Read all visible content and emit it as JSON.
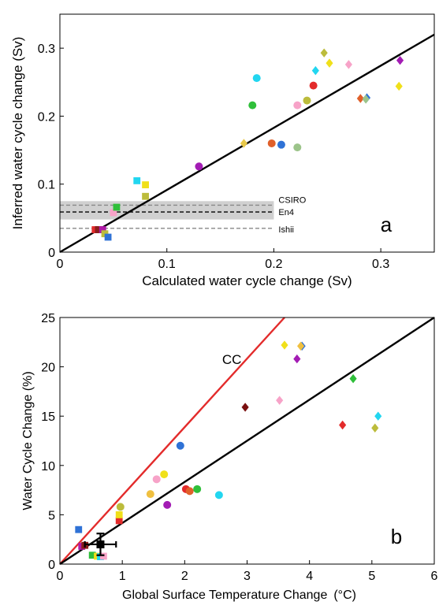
{
  "chart_data": [
    {
      "panel": "a",
      "type": "scatter",
      "xlabel": "Calculated water cycle change (Sv)",
      "ylabel": "Inferred water cycle change (Sv)",
      "xlim": [
        0,
        0.35
      ],
      "ylim": [
        0,
        0.35
      ],
      "xticks": [
        "0",
        "0.1",
        "0.2",
        "0.3"
      ],
      "yticks": [
        "0",
        "0.1",
        "0.2",
        "0.3"
      ],
      "grid": false,
      "panel_label": "a",
      "fit_line": {
        "x": [
          0,
          0.35
        ],
        "y": [
          0,
          0.32
        ],
        "color": "#000000"
      },
      "band": {
        "y_range": [
          0.048,
          0.075
        ],
        "color": "#d0d0d0"
      },
      "reference_lines": [
        {
          "label": "CSIRO",
          "y": 0.069,
          "style": "dashed",
          "color": "#888888"
        },
        {
          "label": "En4",
          "y": 0.059,
          "style": "dashed",
          "color": "#000000"
        },
        {
          "label": "Ishii",
          "y": 0.035,
          "style": "dashed",
          "color": "#888888"
        }
      ],
      "points": [
        {
          "x": 0.033,
          "y": 0.033,
          "marker": "square",
          "color": "#e32b2b"
        },
        {
          "x": 0.036,
          "y": 0.033,
          "marker": "square",
          "color": "#8a1c1c"
        },
        {
          "x": 0.04,
          "y": 0.033,
          "marker": "square",
          "color": "#b01aa8"
        },
        {
          "x": 0.042,
          "y": 0.027,
          "marker": "square",
          "color": "#bcbc3c"
        },
        {
          "x": 0.045,
          "y": 0.022,
          "marker": "square",
          "color": "#2f72d6"
        },
        {
          "x": 0.05,
          "y": 0.058,
          "marker": "square",
          "color": "#f7a3c8"
        },
        {
          "x": 0.053,
          "y": 0.066,
          "marker": "square",
          "color": "#2fbf3a"
        },
        {
          "x": 0.072,
          "y": 0.105,
          "marker": "square",
          "color": "#22d6f0"
        },
        {
          "x": 0.08,
          "y": 0.099,
          "marker": "square",
          "color": "#f0e01a"
        },
        {
          "x": 0.08,
          "y": 0.082,
          "marker": "square",
          "color": "#bcbc3c"
        },
        {
          "x": 0.13,
          "y": 0.126,
          "marker": "circle",
          "color": "#a31cb4"
        },
        {
          "x": 0.172,
          "y": 0.16,
          "marker": "diamond",
          "color": "#e8c84a"
        },
        {
          "x": 0.18,
          "y": 0.216,
          "marker": "circle",
          "color": "#2fbf3a"
        },
        {
          "x": 0.184,
          "y": 0.256,
          "marker": "circle",
          "color": "#22d6f0"
        },
        {
          "x": 0.198,
          "y": 0.16,
          "marker": "circle",
          "color": "#e0602a"
        },
        {
          "x": 0.207,
          "y": 0.158,
          "marker": "circle",
          "color": "#2f72d6"
        },
        {
          "x": 0.222,
          "y": 0.216,
          "marker": "circle",
          "color": "#f7a3c8"
        },
        {
          "x": 0.222,
          "y": 0.154,
          "marker": "circle",
          "color": "#9cc48a"
        },
        {
          "x": 0.231,
          "y": 0.223,
          "marker": "circle",
          "color": "#bcbc3c"
        },
        {
          "x": 0.237,
          "y": 0.245,
          "marker": "circle",
          "color": "#e32b2b"
        },
        {
          "x": 0.239,
          "y": 0.267,
          "marker": "diamond",
          "color": "#22d6f0"
        },
        {
          "x": 0.247,
          "y": 0.293,
          "marker": "diamond",
          "color": "#bcbc3c"
        },
        {
          "x": 0.252,
          "y": 0.278,
          "marker": "diamond",
          "color": "#f0e01a"
        },
        {
          "x": 0.27,
          "y": 0.276,
          "marker": "diamond",
          "color": "#f7a3c8"
        },
        {
          "x": 0.281,
          "y": 0.226,
          "marker": "diamond",
          "color": "#e0602a"
        },
        {
          "x": 0.287,
          "y": 0.227,
          "marker": "diamond",
          "color": "#2f72d6"
        },
        {
          "x": 0.286,
          "y": 0.225,
          "marker": "diamond",
          "color": "#9cc48a"
        },
        {
          "x": 0.317,
          "y": 0.244,
          "marker": "diamond",
          "color": "#f0e01a"
        },
        {
          "x": 0.318,
          "y": 0.282,
          "marker": "diamond",
          "color": "#a31cb4"
        }
      ]
    },
    {
      "panel": "b",
      "type": "scatter",
      "xlabel": "Global Surface Temperature Change",
      "xlabel_unit": "(°C)",
      "ylabel": "Water Cycle Change (%)",
      "xlim": [
        0,
        6
      ],
      "ylim": [
        0,
        25
      ],
      "xticks": [
        "0",
        "1",
        "2",
        "3",
        "4",
        "5",
        "6"
      ],
      "yticks": [
        "0",
        "5",
        "10",
        "15",
        "20",
        "25"
      ],
      "grid": false,
      "panel_label": "b",
      "lines": [
        {
          "name": "CC",
          "x": [
            0,
            3.6
          ],
          "y": [
            0,
            25
          ],
          "color": "#e32b2b"
        },
        {
          "x": [
            0,
            6
          ],
          "y": [
            0,
            25
          ],
          "color": "#000000"
        }
      ],
      "observation": {
        "x": 0.65,
        "y": 2.0,
        "x_err": 0.25,
        "y_err": 1.1,
        "color": "#000000"
      },
      "points": [
        {
          "x": 0.3,
          "y": 3.5,
          "marker": "square",
          "color": "#2f72d6"
        },
        {
          "x": 0.35,
          "y": 1.8,
          "marker": "square",
          "color": "#b01aa8"
        },
        {
          "x": 0.4,
          "y": 1.9,
          "marker": "square",
          "color": "#8a1c1c"
        },
        {
          "x": 0.52,
          "y": 0.9,
          "marker": "square",
          "color": "#2fbf3a"
        },
        {
          "x": 0.6,
          "y": 0.8,
          "marker": "square",
          "color": "#f0e01a"
        },
        {
          "x": 0.65,
          "y": 0.75,
          "marker": "square",
          "color": "#22d6f0"
        },
        {
          "x": 0.7,
          "y": 0.8,
          "marker": "square",
          "color": "#f7a3c8"
        },
        {
          "x": 0.95,
          "y": 4.4,
          "marker": "square",
          "color": "#e32b2b"
        },
        {
          "x": 0.95,
          "y": 5.0,
          "marker": "square",
          "color": "#f0e01a"
        },
        {
          "x": 0.97,
          "y": 5.8,
          "marker": "circle",
          "color": "#bcbc3c"
        },
        {
          "x": 1.45,
          "y": 7.1,
          "marker": "circle",
          "color": "#f0c040"
        },
        {
          "x": 1.55,
          "y": 8.6,
          "marker": "circle",
          "color": "#f7a3c8"
        },
        {
          "x": 1.67,
          "y": 9.1,
          "marker": "circle",
          "color": "#f0e01a"
        },
        {
          "x": 1.72,
          "y": 6.0,
          "marker": "circle",
          "color": "#a31cb4"
        },
        {
          "x": 1.93,
          "y": 12.0,
          "marker": "circle",
          "color": "#2f72d6"
        },
        {
          "x": 2.02,
          "y": 7.6,
          "marker": "circle",
          "color": "#e32b2b"
        },
        {
          "x": 2.08,
          "y": 7.4,
          "marker": "circle",
          "color": "#e0602a"
        },
        {
          "x": 2.2,
          "y": 7.6,
          "marker": "circle",
          "color": "#2fbf3a"
        },
        {
          "x": 2.55,
          "y": 7.0,
          "marker": "circle",
          "color": "#22d6f0"
        },
        {
          "x": 2.97,
          "y": 15.9,
          "marker": "diamond",
          "color": "#7a1010"
        },
        {
          "x": 3.52,
          "y": 16.6,
          "marker": "diamond",
          "color": "#f7a3c8"
        },
        {
          "x": 3.6,
          "y": 22.2,
          "marker": "diamond",
          "color": "#f0e01a"
        },
        {
          "x": 3.8,
          "y": 20.8,
          "marker": "diamond",
          "color": "#a31cb4"
        },
        {
          "x": 3.88,
          "y": 22.1,
          "marker": "diamond",
          "color": "#2f72d6"
        },
        {
          "x": 3.86,
          "y": 22.1,
          "marker": "diamond",
          "color": "#f0c040"
        },
        {
          "x": 4.53,
          "y": 14.1,
          "marker": "diamond",
          "color": "#e32b2b"
        },
        {
          "x": 4.7,
          "y": 18.8,
          "marker": "diamond",
          "color": "#2fbf3a"
        },
        {
          "x": 5.05,
          "y": 13.8,
          "marker": "diamond",
          "color": "#bcbc3c"
        },
        {
          "x": 5.1,
          "y": 15.0,
          "marker": "diamond",
          "color": "#22d6f0"
        }
      ]
    }
  ]
}
